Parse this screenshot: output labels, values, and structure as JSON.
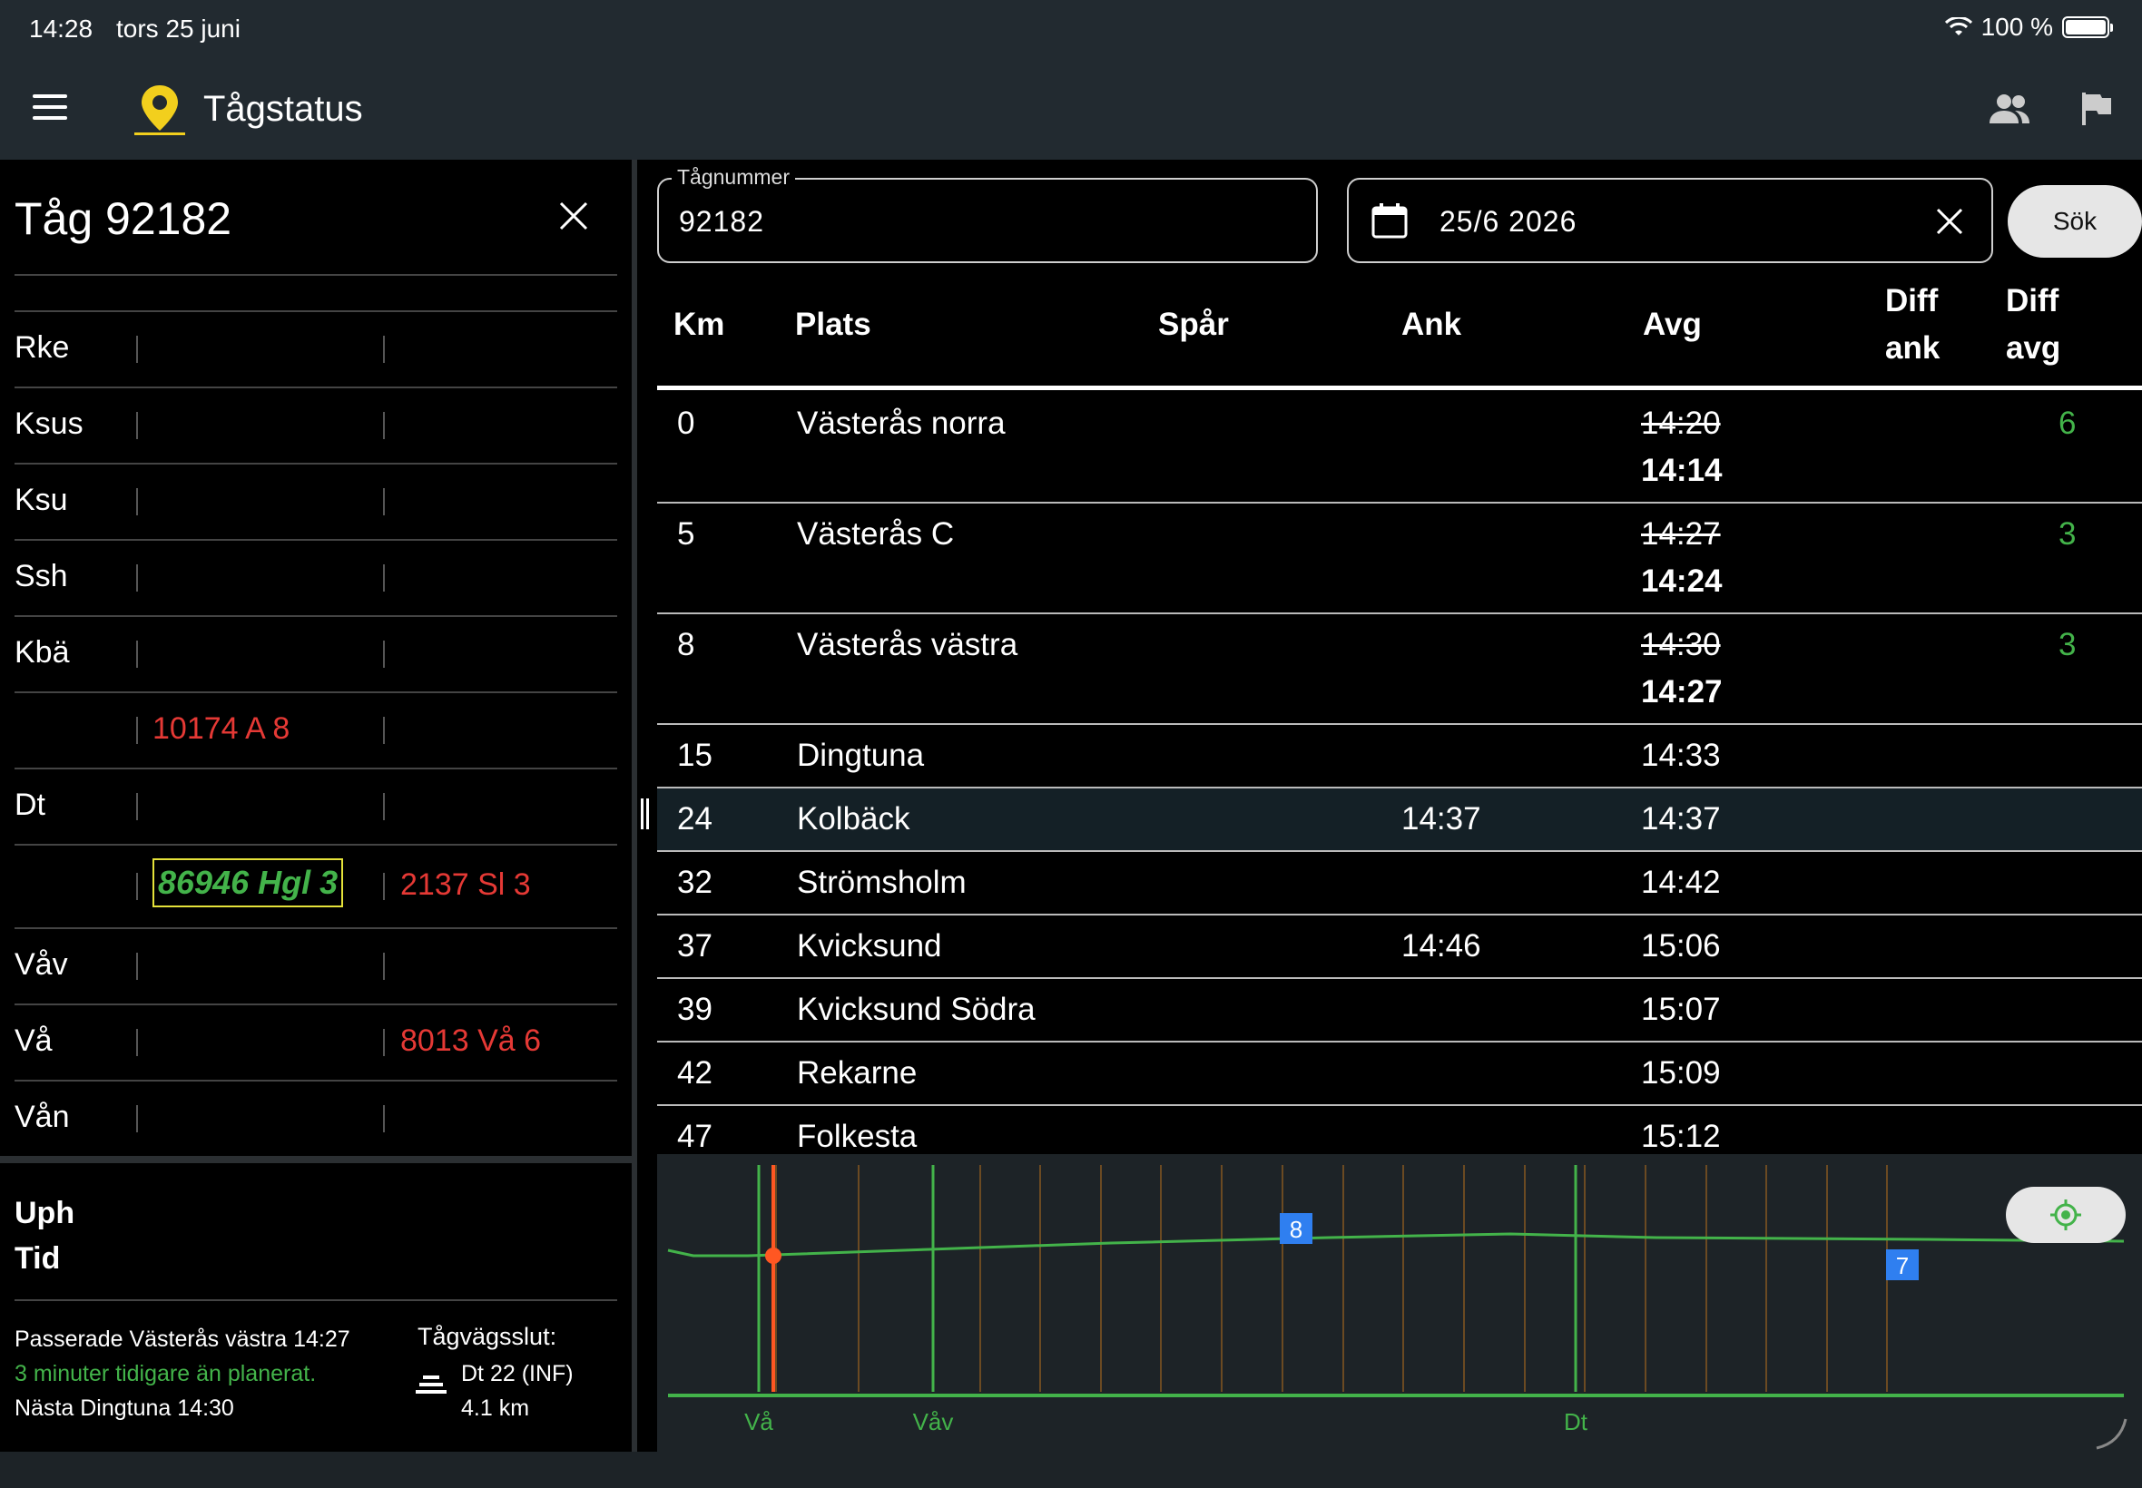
{
  "status": {
    "time": "14:28",
    "date": "tors 25 juni",
    "battery": "100 %",
    "battery_level": 1.0
  },
  "app": {
    "title": "Tågstatus"
  },
  "train_panel": {
    "title": "Tåg 92182",
    "stations": [
      {
        "name": "Rke",
        "col1": "",
        "col2": ""
      },
      {
        "name": "Ksus",
        "col1": "",
        "col2": ""
      },
      {
        "name": "Ksu",
        "col1": "",
        "col2": ""
      },
      {
        "name": "Ssh",
        "col1": "",
        "col2": ""
      },
      {
        "name": "Kbä",
        "col1": "",
        "col2": ""
      },
      {
        "name": "",
        "col1": "10174 A 8",
        "col2": ""
      },
      {
        "name": "Dt",
        "col1": "",
        "col2": ""
      },
      {
        "name": "",
        "col1": "86946 Hgl 3",
        "col2": "2137 Sl 3",
        "highlight": true
      },
      {
        "name": "Våv",
        "col1": "",
        "col2": ""
      },
      {
        "name": "Vå",
        "col1": "",
        "col2": "8013 Vå 6"
      },
      {
        "name": "Vån",
        "col1": "",
        "col2": ""
      }
    ]
  },
  "info": {
    "uph": "Uph",
    "tid": "Tid",
    "passed": "Passerade Västerås västra 14:27",
    "early": "3 minuter tidigare än planerat.",
    "next": "Nästa Dingtuna 14:30",
    "route_end_label": "Tågvägsslut:",
    "route_end_station": "Dt 22 (INF)",
    "route_end_distance": "4.1 km"
  },
  "search": {
    "train_label": "Tågnummer",
    "train_value": "92182",
    "date_value": "25/6 2026",
    "button": "Sök"
  },
  "table": {
    "headers": {
      "km": "Km",
      "plats": "Plats",
      "spar": "Spår",
      "ank": "Ank",
      "avg": "Avg",
      "diff_ank_1": "Diff",
      "diff_ank_2": "ank",
      "diff_avg_1": "Diff",
      "diff_avg_2": "avg"
    },
    "rows": [
      {
        "km": "0",
        "plats": "Västerås norra",
        "ank": "",
        "avg_planned": "14:20",
        "avg_actual": "14:14",
        "diff_avg": "6"
      },
      {
        "km": "5",
        "plats": "Västerås C",
        "ank": "",
        "avg_planned": "14:27",
        "avg_actual": "14:24",
        "diff_avg": "3"
      },
      {
        "km": "8",
        "plats": "Västerås västra",
        "ank": "",
        "avg_planned": "14:30",
        "avg_actual": "14:27",
        "diff_avg": "3"
      },
      {
        "km": "15",
        "plats": "Dingtuna",
        "ank": "",
        "avg": "14:33"
      },
      {
        "km": "24",
        "plats": "Kolbäck",
        "ank": "14:37",
        "avg": "14:37",
        "highlight": true
      },
      {
        "km": "32",
        "plats": "Strömsholm",
        "ank": "",
        "avg": "14:42"
      },
      {
        "km": "37",
        "plats": "Kvicksund",
        "ank": "14:46",
        "avg": "15:06"
      },
      {
        "km": "39",
        "plats": "Kvicksund Södra",
        "ank": "",
        "avg": "15:07"
      },
      {
        "km": "42",
        "plats": "Rekarne",
        "ank": "",
        "avg": "15:09"
      },
      {
        "km": "47",
        "plats": "Folkesta",
        "ank": "",
        "avg": "15:12"
      }
    ]
  },
  "graph": {
    "station_labels": [
      "Vå",
      "Våv",
      "Dt"
    ],
    "markers": [
      "8",
      "7"
    ],
    "colors": {
      "line": "#43b34a",
      "current": "#ff5722",
      "marker": "#2f7ff0",
      "grid": "#6b4a22"
    }
  }
}
